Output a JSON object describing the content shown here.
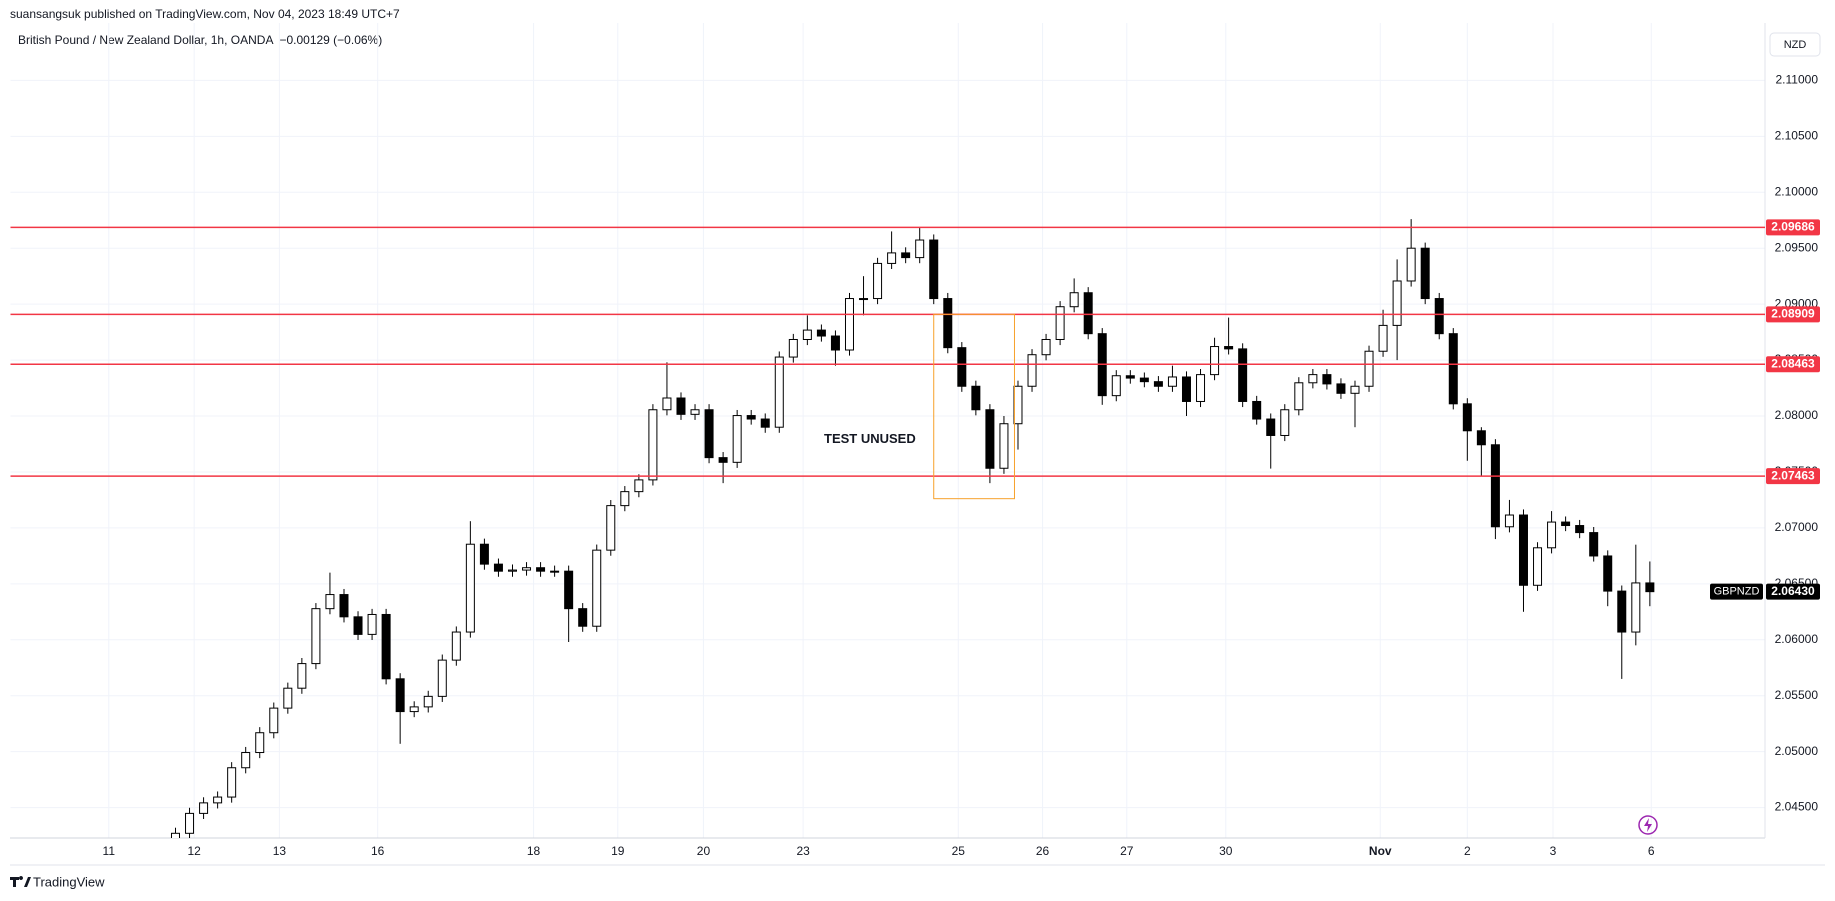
{
  "header": {
    "publisher": "suansangsuk published on TradingView.com, Nov 04, 2023 18:49 UTC+7",
    "logo_text": "TradingView"
  },
  "chart_data": {
    "type": "candlestick",
    "title": "British Pound / New Zealand Dollar, 1h, OANDA  −0.00129 (−0.06%)",
    "currency": "NZD",
    "up_color": "#ffffff",
    "down_color": "#000000",
    "wick_color": "#000000",
    "series": [
      {
        "name": "GBPNZD",
        "open": [
          2.042,
          2.0427,
          2.04448,
          2.04542,
          2.04594,
          2.04856,
          2.04992,
          2.05169,
          2.05389,
          2.05567,
          2.05787,
          2.06278,
          2.06404,
          2.06205,
          2.06048,
          2.06226,
          2.05651,
          2.05358,
          2.054,
          2.05494,
          2.05818,
          2.06069,
          2.06854,
          2.06676,
          2.06613,
          2.06623,
          2.06644,
          2.06613,
          2.06613,
          2.06278,
          2.06121,
          2.06801,
          2.07199,
          2.07324,
          2.07429,
          2.08056,
          2.08161,
          2.08015,
          2.08056,
          2.07628,
          2.07586,
          2.08004,
          2.07973,
          2.079,
          2.08527,
          2.08684,
          2.08768,
          2.08715,
          2.0859,
          2.0905,
          2.0905,
          2.09364,
          2.09458,
          2.09416,
          2.09573,
          2.0905,
          2.08611,
          2.08266,
          2.08056,
          2.07533,
          2.07931,
          2.08266,
          2.08548,
          2.08684,
          2.08977,
          2.09102,
          2.08736,
          2.08182,
          2.0836,
          2.08339,
          2.08307,
          2.08266,
          2.08349,
          2.0813,
          2.0837,
          2.08621,
          2.086,
          2.0813,
          2.07973,
          2.07826,
          2.08056,
          2.08297,
          2.0837,
          2.08287,
          2.08203,
          2.08266,
          2.08579,
          2.0881,
          2.09207,
          2.095,
          2.0905,
          2.08736,
          2.08109,
          2.07868,
          2.07743,
          2.0701,
          2.07115,
          2.06487,
          2.06822,
          2.07052,
          2.07021,
          2.06958,
          2.06749,
          2.06435,
          2.06069,
          2.06508
        ],
        "high": [
          2.0432,
          2.04498,
          2.04592,
          2.04644,
          2.04906,
          2.05042,
          2.05219,
          2.05439,
          2.05617,
          2.05837,
          2.06328,
          2.066,
          2.06454,
          2.06255,
          2.06276,
          2.06276,
          2.05701,
          2.0545,
          2.05544,
          2.05868,
          2.06119,
          2.0706,
          2.06904,
          2.06726,
          2.06673,
          2.06694,
          2.06694,
          2.06663,
          2.06663,
          2.06328,
          2.06851,
          2.07249,
          2.07374,
          2.07479,
          2.08106,
          2.0848,
          2.08211,
          2.08106,
          2.08106,
          2.07678,
          2.08054,
          2.08054,
          2.08023,
          2.08577,
          2.08734,
          2.089,
          2.08818,
          2.08765,
          2.091,
          2.0925,
          2.09414,
          2.0965,
          2.09508,
          2.0968,
          2.09623,
          2.091,
          2.08661,
          2.08316,
          2.08106,
          2.08,
          2.08316,
          2.08598,
          2.08734,
          2.09027,
          2.0923,
          2.09152,
          2.08786,
          2.0841,
          2.0841,
          2.08389,
          2.08357,
          2.0845,
          2.08399,
          2.0842,
          2.087,
          2.0888,
          2.0865,
          2.0818,
          2.08023,
          2.08106,
          2.08347,
          2.0842,
          2.0842,
          2.08337,
          2.08316,
          2.08629,
          2.0895,
          2.094,
          2.0976,
          2.0955,
          2.091,
          2.08786,
          2.08159,
          2.079,
          2.07793,
          2.0725,
          2.07165,
          2.06872,
          2.0715,
          2.07102,
          2.07071,
          2.07008,
          2.06799,
          2.06485,
          2.0685,
          2.067
        ],
        "low": [
          2.0418,
          2.0422,
          2.04398,
          2.04492,
          2.04544,
          2.04806,
          2.04942,
          2.05119,
          2.05339,
          2.05517,
          2.05737,
          2.06228,
          2.06155,
          2.05998,
          2.05998,
          2.05601,
          2.0507,
          2.05308,
          2.0535,
          2.05444,
          2.05768,
          2.06019,
          2.06626,
          2.06563,
          2.06563,
          2.06573,
          2.06563,
          2.06563,
          2.0598,
          2.06071,
          2.06071,
          2.06751,
          2.07149,
          2.07274,
          2.07379,
          2.08006,
          2.07965,
          2.07965,
          2.07578,
          2.074,
          2.07536,
          2.07923,
          2.0785,
          2.0785,
          2.08477,
          2.08634,
          2.08665,
          2.0845,
          2.0854,
          2.089,
          2.09,
          2.09314,
          2.09366,
          2.09366,
          2.09,
          2.08561,
          2.08216,
          2.08006,
          2.074,
          2.07483,
          2.077,
          2.08216,
          2.08498,
          2.08634,
          2.08927,
          2.08686,
          2.081,
          2.08132,
          2.08289,
          2.08257,
          2.08216,
          2.08216,
          2.08,
          2.0808,
          2.0832,
          2.0855,
          2.0808,
          2.07923,
          2.0753,
          2.07776,
          2.08006,
          2.08247,
          2.08237,
          2.08153,
          2.079,
          2.08216,
          2.08529,
          2.085,
          2.09157,
          2.09,
          2.08686,
          2.08059,
          2.076,
          2.07463,
          2.069,
          2.0696,
          2.0625,
          2.06437,
          2.06772,
          2.06971,
          2.06908,
          2.06699,
          2.063,
          2.0565,
          2.0595,
          2.063
        ],
        "close": [
          2.0427,
          2.04448,
          2.04542,
          2.04594,
          2.04856,
          2.04992,
          2.05169,
          2.05389,
          2.05567,
          2.05787,
          2.06278,
          2.06404,
          2.06205,
          2.06048,
          2.06226,
          2.05651,
          2.05358,
          2.054,
          2.05494,
          2.05818,
          2.06069,
          2.06854,
          2.06676,
          2.06613,
          2.06623,
          2.06644,
          2.06613,
          2.06613,
          2.06278,
          2.06121,
          2.06801,
          2.07199,
          2.07324,
          2.07429,
          2.08056,
          2.08161,
          2.08015,
          2.08056,
          2.07628,
          2.07586,
          2.08004,
          2.07973,
          2.079,
          2.08527,
          2.08684,
          2.08768,
          2.08715,
          2.0859,
          2.0905,
          2.0905,
          2.09364,
          2.09458,
          2.09416,
          2.09573,
          2.0905,
          2.08611,
          2.08266,
          2.08056,
          2.07533,
          2.07931,
          2.08266,
          2.08548,
          2.08684,
          2.08977,
          2.09102,
          2.08736,
          2.08182,
          2.0836,
          2.08339,
          2.08307,
          2.08266,
          2.08349,
          2.0813,
          2.0837,
          2.08621,
          2.086,
          2.0813,
          2.07973,
          2.07826,
          2.08056,
          2.08297,
          2.0837,
          2.08287,
          2.08203,
          2.08266,
          2.08579,
          2.0881,
          2.09207,
          2.095,
          2.0905,
          2.08736,
          2.08109,
          2.07868,
          2.07743,
          2.0701,
          2.07115,
          2.06487,
          2.06822,
          2.07052,
          2.07021,
          2.06958,
          2.06749,
          2.06435,
          2.06069,
          2.06508,
          2.0643
        ]
      }
    ],
    "ylim": [
      2.04228,
      2.11513
    ],
    "yticks": [
      {
        "value": 2.045,
        "label": "2.04500"
      },
      {
        "value": 2.05,
        "label": "2.05000"
      },
      {
        "value": 2.055,
        "label": "2.05500"
      },
      {
        "value": 2.06,
        "label": "2.06000"
      },
      {
        "value": 2.065,
        "label": "2.06500"
      },
      {
        "value": 2.07,
        "label": "2.07000"
      },
      {
        "value": 2.075,
        "label": "2.07500"
      },
      {
        "value": 2.08,
        "label": "2.08000"
      },
      {
        "value": 2.085,
        "label": "2.08500"
      },
      {
        "value": 2.09,
        "label": "2.09000"
      },
      {
        "value": 2.095,
        "label": "2.09500"
      },
      {
        "value": 2.1,
        "label": "2.10000"
      },
      {
        "value": 2.105,
        "label": "2.10500"
      },
      {
        "value": 2.11,
        "label": "2.11000"
      }
    ],
    "xlim": [
      -11.75,
      113.2
    ],
    "xticks": [
      {
        "value": -4.75,
        "label": "11"
      },
      {
        "value": 1.33,
        "label": "12"
      },
      {
        "value": 7.4,
        "label": "13"
      },
      {
        "value": 14.4,
        "label": "16"
      },
      {
        "value": 25.5,
        "label": "18"
      },
      {
        "value": 31.5,
        "label": "19"
      },
      {
        "value": 37.6,
        "label": "20"
      },
      {
        "value": 44.7,
        "label": "23"
      },
      {
        "value": 55.75,
        "label": "25"
      },
      {
        "value": 61.75,
        "label": "26"
      },
      {
        "value": 67.75,
        "label": "27"
      },
      {
        "value": 74.8,
        "label": "30"
      },
      {
        "value": 85.8,
        "label": "Nov"
      },
      {
        "value": 92,
        "label": "2"
      },
      {
        "value": 98.1,
        "label": "3"
      },
      {
        "value": 105.1,
        "label": "6"
      }
    ],
    "grid": true,
    "level_color": "#f23645",
    "levels": [
      2.09686,
      2.08909,
      2.08463,
      2.07463
    ],
    "last_price": {
      "value": 2.0643,
      "label": "2.06430"
    },
    "box": {
      "label": "TEST UNUSED",
      "color": "#f7a12b",
      "price_top": 2.08909,
      "price_bottom": 2.07261,
      "start": 54,
      "end": 59.75
    }
  }
}
